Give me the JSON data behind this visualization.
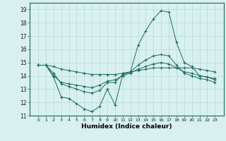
{
  "xlabel": "Humidex (Indice chaleur)",
  "x_values": [
    0,
    1,
    2,
    3,
    4,
    5,
    6,
    7,
    8,
    9,
    10,
    11,
    12,
    13,
    14,
    15,
    16,
    17,
    18,
    19,
    20,
    21,
    22,
    23
  ],
  "line1": [
    14.8,
    14.8,
    14.7,
    14.5,
    14.4,
    14.3,
    14.2,
    14.1,
    14.1,
    14.1,
    14.1,
    14.2,
    14.3,
    14.4,
    14.5,
    14.6,
    14.6,
    14.6,
    14.6,
    14.6,
    14.6,
    14.5,
    14.4,
    14.3
  ],
  "line2": [
    14.8,
    14.8,
    13.9,
    12.4,
    12.3,
    11.9,
    11.5,
    11.3,
    11.7,
    13.0,
    11.8,
    14.1,
    14.3,
    16.3,
    17.4,
    18.3,
    18.9,
    18.8,
    16.5,
    15.0,
    14.7,
    14.0,
    13.9,
    13.7
  ],
  "line3": [
    14.8,
    14.8,
    14.2,
    13.4,
    13.2,
    13.0,
    12.8,
    12.7,
    12.9,
    13.5,
    13.5,
    14.1,
    14.3,
    14.8,
    15.2,
    15.5,
    15.6,
    15.5,
    14.8,
    14.2,
    14.0,
    13.8,
    13.7,
    13.5
  ],
  "line4": [
    14.8,
    14.8,
    14.0,
    13.5,
    13.4,
    13.3,
    13.2,
    13.1,
    13.3,
    13.6,
    13.7,
    14.0,
    14.2,
    14.5,
    14.7,
    14.9,
    15.0,
    14.9,
    14.6,
    14.3,
    14.2,
    14.0,
    13.9,
    13.8
  ],
  "line_color": "#1a6b5a",
  "bg_color": "#d8f0f0",
  "grid_color": "#b8d8d8",
  "ylim": [
    11,
    19.5
  ],
  "yticks": [
    11,
    12,
    13,
    14,
    15,
    16,
    17,
    18,
    19
  ],
  "xticks": [
    0,
    1,
    2,
    3,
    4,
    5,
    6,
    7,
    8,
    9,
    10,
    11,
    12,
    13,
    14,
    15,
    16,
    17,
    18,
    19,
    20,
    21,
    22,
    23
  ]
}
